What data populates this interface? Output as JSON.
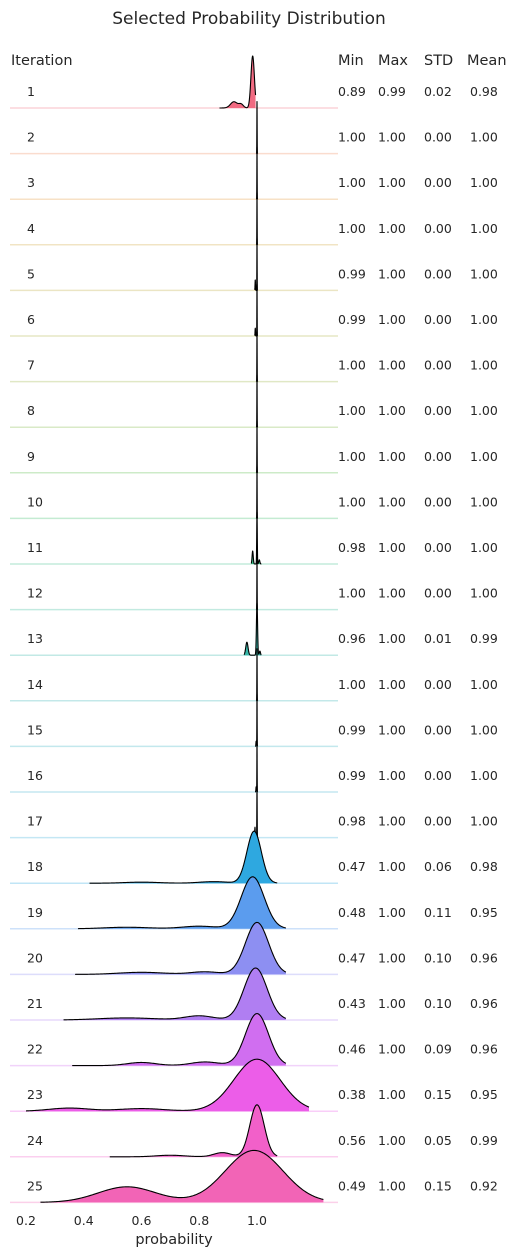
{
  "chart_data": {
    "type": "ridgeline",
    "title": "Selected Probability Distribution",
    "xlabel": "probability",
    "xlim": [
      0.2,
      1.25
    ],
    "x_ticks": [
      0.2,
      0.4,
      0.6,
      0.8,
      1.0
    ],
    "x_tick_labels": [
      "0.2",
      "0.4",
      "0.6",
      "0.8",
      "1.0"
    ],
    "columns": [
      "Iteration",
      "Min",
      "Max",
      "STD",
      "Mean"
    ],
    "series": [
      {
        "iteration": "1",
        "min": "0.89",
        "max": "0.99",
        "std": "0.02",
        "mean": "0.98",
        "color": "#f16b82"
      },
      {
        "iteration": "2",
        "min": "1.00",
        "max": "1.00",
        "std": "0.00",
        "mean": "1.00",
        "color": "#ee8a5c"
      },
      {
        "iteration": "3",
        "min": "1.00",
        "max": "1.00",
        "std": "0.00",
        "mean": "1.00",
        "color": "#e39a43"
      },
      {
        "iteration": "4",
        "min": "1.00",
        "max": "1.00",
        "std": "0.00",
        "mean": "1.00",
        "color": "#cfa43a"
      },
      {
        "iteration": "5",
        "min": "0.99",
        "max": "1.00",
        "std": "0.00",
        "mean": "1.00",
        "color": "#bcaa3a"
      },
      {
        "iteration": "6",
        "min": "0.99",
        "max": "1.00",
        "std": "0.00",
        "mean": "1.00",
        "color": "#aaaf3a"
      },
      {
        "iteration": "7",
        "min": "1.00",
        "max": "1.00",
        "std": "0.00",
        "mean": "1.00",
        "color": "#97b43f"
      },
      {
        "iteration": "8",
        "min": "1.00",
        "max": "1.00",
        "std": "0.00",
        "mean": "1.00",
        "color": "#80b944"
      },
      {
        "iteration": "9",
        "min": "1.00",
        "max": "1.00",
        "std": "0.00",
        "mean": "1.00",
        "color": "#5bbd4a"
      },
      {
        "iteration": "10",
        "min": "1.00",
        "max": "1.00",
        "std": "0.00",
        "mean": "1.00",
        "color": "#3dbd6a"
      },
      {
        "iteration": "11",
        "min": "0.98",
        "max": "1.00",
        "std": "0.00",
        "mean": "1.00",
        "color": "#37ba85"
      },
      {
        "iteration": "12",
        "min": "1.00",
        "max": "1.00",
        "std": "0.00",
        "mean": "1.00",
        "color": "#36b898"
      },
      {
        "iteration": "13",
        "min": "0.96",
        "max": "1.00",
        "std": "0.01",
        "mean": "0.99",
        "color": "#36b6a8"
      },
      {
        "iteration": "14",
        "min": "1.00",
        "max": "1.00",
        "std": "0.00",
        "mean": "1.00",
        "color": "#37b4b6"
      },
      {
        "iteration": "15",
        "min": "0.99",
        "max": "1.00",
        "std": "0.00",
        "mean": "1.00",
        "color": "#38b2c4"
      },
      {
        "iteration": "16",
        "min": "0.99",
        "max": "1.00",
        "std": "0.00",
        "mean": "1.00",
        "color": "#3ab0d0"
      },
      {
        "iteration": "17",
        "min": "0.98",
        "max": "1.00",
        "std": "0.00",
        "mean": "1.00",
        "color": "#3aaedb"
      },
      {
        "iteration": "18",
        "min": "0.47",
        "max": "1.00",
        "std": "0.06",
        "mean": "0.98",
        "color": "#2ea8e0"
      },
      {
        "iteration": "19",
        "min": "0.48",
        "max": "1.00",
        "std": "0.11",
        "mean": "0.95",
        "color": "#5b9cee"
      },
      {
        "iteration": "20",
        "min": "0.47",
        "max": "1.00",
        "std": "0.10",
        "mean": "0.96",
        "color": "#8d8ff2"
      },
      {
        "iteration": "21",
        "min": "0.43",
        "max": "1.00",
        "std": "0.10",
        "mean": "0.96",
        "color": "#b07ef2"
      },
      {
        "iteration": "22",
        "min": "0.46",
        "max": "1.00",
        "std": "0.09",
        "mean": "0.96",
        "color": "#d06ef0"
      },
      {
        "iteration": "23",
        "min": "0.38",
        "max": "1.00",
        "std": "0.15",
        "mean": "0.95",
        "color": "#ec5de8"
      },
      {
        "iteration": "24",
        "min": "0.56",
        "max": "1.00",
        "std": "0.05",
        "mean": "0.99",
        "color": "#f260c9"
      },
      {
        "iteration": "25",
        "min": "0.49",
        "max": "1.00",
        "std": "0.15",
        "mean": "0.92",
        "color": "#f264b6"
      }
    ],
    "density_shapes": [
      {
        "range": [
          0.87,
          0.995
        ],
        "components": [
          [
            0.92,
            0.012,
            0.12
          ],
          [
            0.945,
            0.008,
            0.07
          ],
          [
            0.985,
            0.006,
            1.0
          ]
        ]
      },
      {
        "range": [
          0.998,
          1.002
        ],
        "components": [
          [
            1.0,
            0.0005,
            1.0
          ]
        ]
      },
      {
        "range": [
          0.998,
          1.002
        ],
        "components": [
          [
            1.0,
            0.0005,
            1.0
          ]
        ]
      },
      {
        "range": [
          0.998,
          1.002
        ],
        "components": [
          [
            1.0,
            0.0005,
            1.0
          ]
        ]
      },
      {
        "range": [
          0.992,
          1.002
        ],
        "components": [
          [
            0.994,
            0.0008,
            0.2
          ],
          [
            1.0,
            0.0005,
            1.0
          ]
        ]
      },
      {
        "range": [
          0.992,
          1.002
        ],
        "components": [
          [
            0.994,
            0.0008,
            0.15
          ],
          [
            1.0,
            0.0005,
            1.0
          ]
        ]
      },
      {
        "range": [
          0.998,
          1.002
        ],
        "components": [
          [
            1.0,
            0.0005,
            1.0
          ]
        ]
      },
      {
        "range": [
          0.998,
          1.002
        ],
        "components": [
          [
            1.0,
            0.0005,
            1.0
          ]
        ]
      },
      {
        "range": [
          0.998,
          1.002
        ],
        "components": [
          [
            1.0,
            0.0005,
            1.0
          ]
        ]
      },
      {
        "range": [
          0.998,
          1.002
        ],
        "components": [
          [
            1.0,
            0.0005,
            1.0
          ]
        ]
      },
      {
        "range": [
          0.98,
          1.015
        ],
        "components": [
          [
            0.985,
            0.002,
            0.25
          ],
          [
            1.0,
            0.001,
            1.0
          ],
          [
            1.008,
            0.002,
            0.08
          ]
        ]
      },
      {
        "range": [
          0.998,
          1.002
        ],
        "components": [
          [
            1.0,
            0.0005,
            1.0
          ]
        ]
      },
      {
        "range": [
          0.955,
          1.015
        ],
        "components": [
          [
            0.965,
            0.004,
            0.25
          ],
          [
            1.0,
            0.002,
            1.0
          ],
          [
            1.01,
            0.002,
            0.08
          ]
        ]
      },
      {
        "range": [
          0.998,
          1.002
        ],
        "components": [
          [
            1.0,
            0.0005,
            1.0
          ]
        ]
      },
      {
        "range": [
          0.994,
          1.002
        ],
        "components": [
          [
            0.997,
            0.0008,
            0.1
          ],
          [
            1.0,
            0.0005,
            1.0
          ]
        ]
      },
      {
        "range": [
          0.994,
          1.002
        ],
        "components": [
          [
            0.997,
            0.0008,
            0.1
          ],
          [
            1.0,
            0.0005,
            1.0
          ]
        ]
      },
      {
        "range": [
          0.99,
          1.003
        ],
        "components": [
          [
            0.993,
            0.001,
            0.2
          ],
          [
            1.0,
            0.0006,
            1.0
          ]
        ]
      },
      {
        "range": [
          0.42,
          1.07
        ],
        "components": [
          [
            0.6,
            0.06,
            0.02
          ],
          [
            0.85,
            0.05,
            0.03
          ],
          [
            0.99,
            0.025,
            1.0
          ]
        ]
      },
      {
        "range": [
          0.38,
          1.1
        ],
        "components": [
          [
            0.55,
            0.08,
            0.03
          ],
          [
            0.8,
            0.06,
            0.05
          ],
          [
            0.985,
            0.04,
            1.0
          ]
        ]
      },
      {
        "range": [
          0.37,
          1.1
        ],
        "components": [
          [
            0.6,
            0.08,
            0.04
          ],
          [
            0.82,
            0.05,
            0.05
          ],
          [
            1.0,
            0.04,
            1.0
          ]
        ]
      },
      {
        "range": [
          0.33,
          1.1
        ],
        "components": [
          [
            0.55,
            0.1,
            0.04
          ],
          [
            0.8,
            0.05,
            0.08
          ],
          [
            0.995,
            0.04,
            1.0
          ]
        ]
      },
      {
        "range": [
          0.36,
          1.1
        ],
        "components": [
          [
            0.6,
            0.05,
            0.06
          ],
          [
            0.82,
            0.05,
            0.07
          ],
          [
            1.0,
            0.04,
            1.0
          ]
        ]
      },
      {
        "range": [
          0.2,
          1.18
        ],
        "components": [
          [
            0.35,
            0.07,
            0.06
          ],
          [
            0.6,
            0.08,
            0.05
          ],
          [
            1.0,
            0.08,
            1.0
          ]
        ]
      },
      {
        "range": [
          0.49,
          1.07
        ],
        "components": [
          [
            0.7,
            0.05,
            0.03
          ],
          [
            0.88,
            0.03,
            0.08
          ],
          [
            1.0,
            0.025,
            1.0
          ]
        ]
      },
      {
        "range": [
          0.25,
          1.23
        ],
        "components": [
          [
            0.55,
            0.1,
            0.3
          ],
          [
            0.99,
            0.1,
            1.0
          ]
        ]
      }
    ]
  }
}
